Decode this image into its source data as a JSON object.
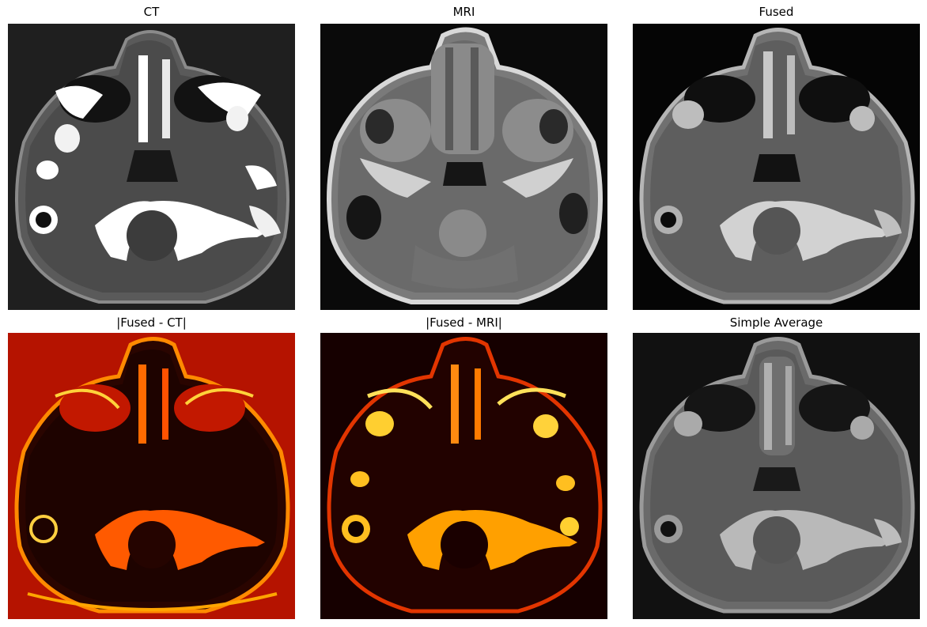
{
  "figure": {
    "panels": [
      {
        "id": "ct",
        "title": "CT",
        "colormap": "gray",
        "background": "#1f1f1f"
      },
      {
        "id": "mri",
        "title": "MRI",
        "colormap": "gray",
        "background": "#0a0a0a"
      },
      {
        "id": "fused",
        "title": "Fused",
        "colormap": "gray",
        "background": "#050505"
      },
      {
        "id": "diff-ct",
        "title": "|Fused - CT|",
        "colormap": "hot",
        "background": "#b51300"
      },
      {
        "id": "diff-mri",
        "title": "|Fused - MRI|",
        "colormap": "hot",
        "background": "#160000"
      },
      {
        "id": "avg",
        "title": "Simple Average",
        "colormap": "gray",
        "background": "#111111"
      }
    ]
  }
}
